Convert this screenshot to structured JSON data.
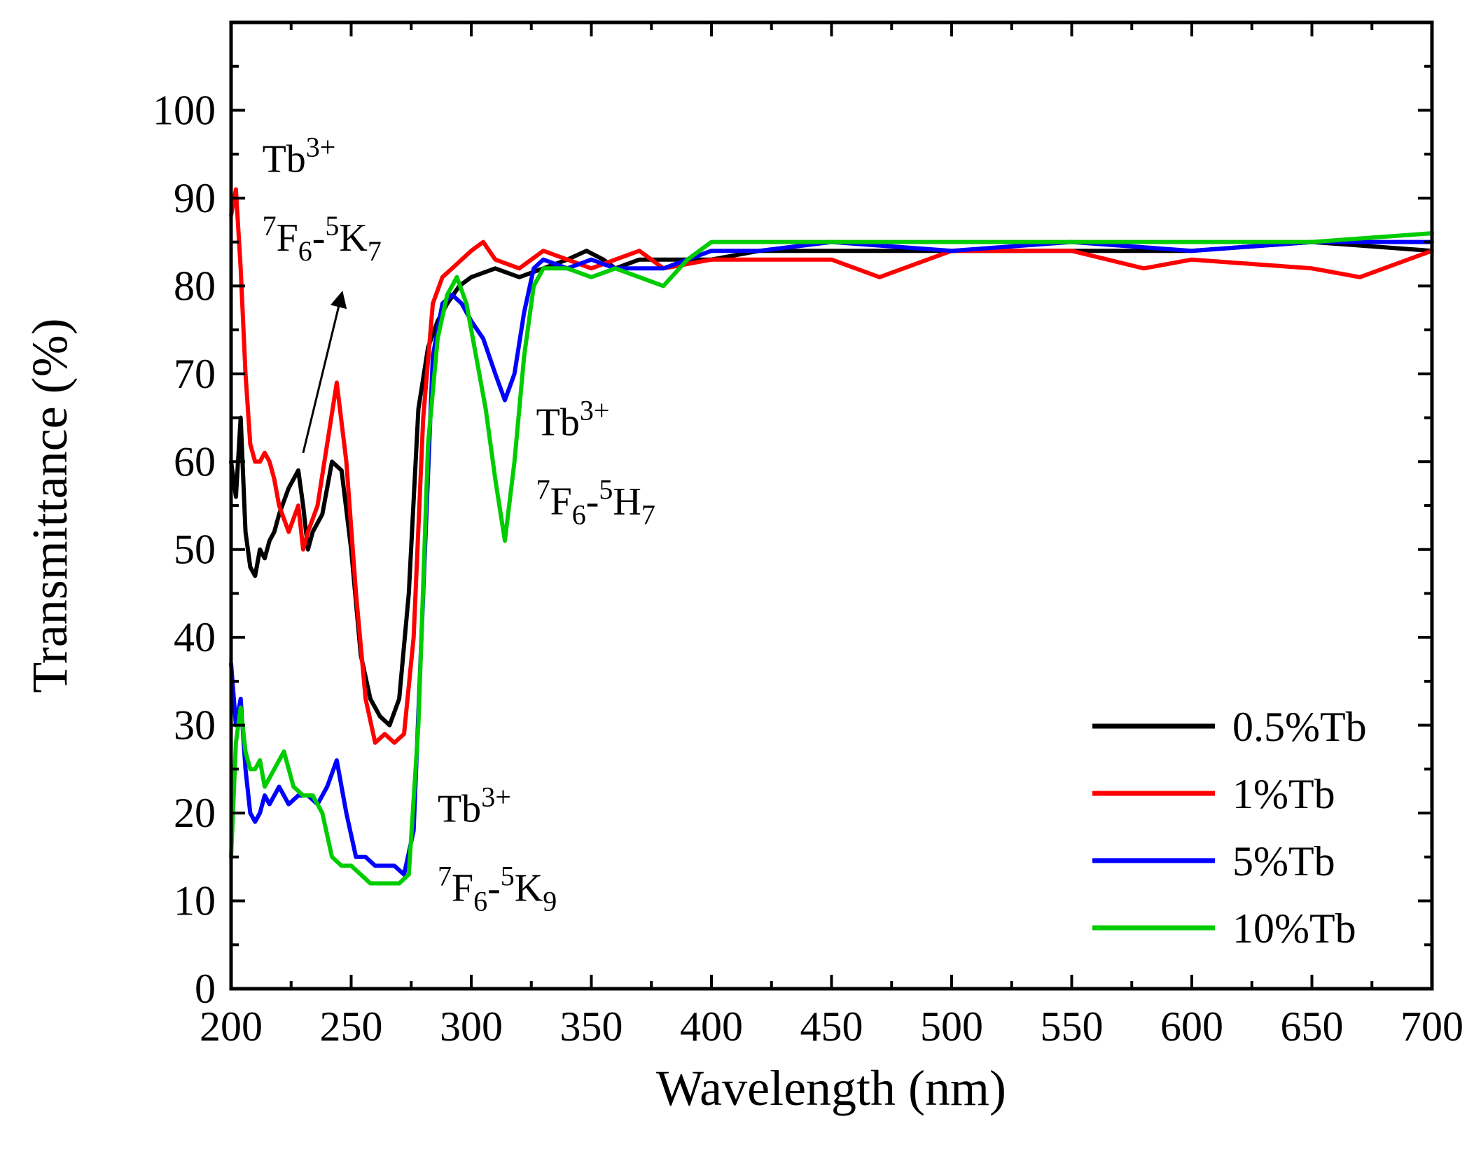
{
  "chart_data": {
    "type": "line",
    "title": "",
    "xlabel": "Wavelength (nm)",
    "ylabel": "Transmittance (%)",
    "xlim": [
      200,
      700
    ],
    "ylim": [
      0,
      110
    ],
    "xticks": [
      200,
      250,
      300,
      350,
      400,
      450,
      500,
      550,
      600,
      650,
      700
    ],
    "yticks": [
      0,
      10,
      20,
      30,
      40,
      50,
      60,
      70,
      80,
      90,
      100
    ],
    "grid": false,
    "legend_position": "bottom-right",
    "series": [
      {
        "name": "0.5%Tb",
        "color": "#000000",
        "x": [
          200,
          202,
          204,
          206,
          208,
          210,
          212,
          214,
          216,
          218,
          220,
          224,
          228,
          230,
          232,
          234,
          238,
          242,
          246,
          250,
          254,
          258,
          262,
          266,
          270,
          274,
          278,
          282,
          286,
          290,
          295,
          300,
          310,
          320,
          330,
          340,
          348,
          355,
          360,
          370,
          380,
          400,
          420,
          450,
          500,
          550,
          600,
          650,
          700
        ],
        "y": [
          60,
          56,
          65,
          52,
          48,
          47,
          50,
          49,
          51,
          52,
          54,
          57,
          59,
          55,
          50,
          52,
          54,
          60,
          59,
          50,
          38,
          33,
          31,
          30,
          33,
          45,
          66,
          73,
          76,
          78,
          80,
          81,
          82,
          81,
          82,
          83,
          84,
          83,
          82,
          83,
          83,
          83,
          84,
          84,
          84,
          84,
          84,
          85,
          84
        ]
      },
      {
        "name": "1%Tb",
        "color": "#ff0000",
        "x": [
          200,
          202,
          204,
          206,
          208,
          210,
          212,
          214,
          216,
          218,
          220,
          224,
          228,
          230,
          232,
          236,
          240,
          244,
          248,
          252,
          256,
          260,
          264,
          268,
          272,
          276,
          280,
          284,
          288,
          292,
          296,
          300,
          305,
          310,
          320,
          330,
          340,
          350,
          360,
          370,
          380,
          400,
          420,
          450,
          470,
          500,
          550,
          580,
          600,
          650,
          670,
          700
        ],
        "y": [
          88,
          91,
          82,
          70,
          62,
          60,
          60,
          61,
          60,
          58,
          55,
          52,
          55,
          50,
          52,
          55,
          62,
          69,
          60,
          45,
          33,
          28,
          29,
          28,
          29,
          40,
          65,
          78,
          81,
          82,
          83,
          84,
          85,
          83,
          82,
          84,
          83,
          82,
          83,
          84,
          82,
          83,
          83,
          83,
          81,
          84,
          84,
          82,
          83,
          82,
          81,
          84
        ]
      },
      {
        "name": "5%Tb",
        "color": "#0000ff",
        "x": [
          200,
          202,
          204,
          206,
          208,
          210,
          212,
          214,
          216,
          220,
          224,
          228,
          232,
          236,
          240,
          244,
          248,
          252,
          256,
          260,
          264,
          268,
          272,
          276,
          280,
          284,
          288,
          292,
          296,
          300,
          305,
          310,
          314,
          318,
          322,
          326,
          330,
          340,
          350,
          360,
          370,
          380,
          400,
          420,
          450,
          500,
          550,
          600,
          650,
          700
        ],
        "y": [
          37,
          30,
          33,
          25,
          20,
          19,
          20,
          22,
          21,
          23,
          21,
          22,
          22,
          21,
          23,
          26,
          20,
          15,
          15,
          14,
          14,
          14,
          13,
          18,
          45,
          72,
          78,
          79,
          78,
          76,
          74,
          70,
          67,
          70,
          77,
          82,
          83,
          82,
          83,
          82,
          82,
          82,
          84,
          84,
          85,
          84,
          85,
          84,
          85,
          85
        ]
      },
      {
        "name": "10%Tb",
        "color": "#00cc00",
        "x": [
          200,
          202,
          204,
          206,
          208,
          210,
          212,
          214,
          218,
          222,
          226,
          230,
          234,
          238,
          242,
          246,
          250,
          254,
          258,
          262,
          266,
          270,
          274,
          278,
          282,
          286,
          290,
          294,
          298,
          302,
          306,
          310,
          314,
          318,
          322,
          326,
          330,
          340,
          350,
          360,
          370,
          380,
          390,
          400,
          420,
          450,
          500,
          550,
          600,
          650,
          700
        ],
        "y": [
          15,
          28,
          32,
          27,
          25,
          25,
          26,
          23,
          25,
          27,
          23,
          22,
          22,
          20,
          15,
          14,
          14,
          13,
          12,
          12,
          12,
          12,
          13,
          30,
          62,
          74,
          79,
          81,
          78,
          72,
          66,
          58,
          51,
          60,
          72,
          80,
          82,
          82,
          81,
          82,
          81,
          80,
          83,
          85,
          85,
          85,
          85,
          85,
          85,
          85,
          86
        ]
      }
    ],
    "annotations": [
      {
        "text": "Tb",
        "sup": "3+",
        "wavelength": 213,
        "transmittance": 93
      },
      {
        "pre_sup": "7",
        "text1": "F",
        "sub1": "6",
        "dash": "-",
        "mid_sup": "5",
        "text2": "K",
        "sub2": "7",
        "wavelength": 213,
        "transmittance": 84
      },
      {
        "text": "Tb",
        "sup": "3+",
        "wavelength": 327,
        "transmittance": 63
      },
      {
        "pre_sup": "7",
        "text1": "F",
        "sub1": "6",
        "dash": "-",
        "mid_sup": "5",
        "text2": "H",
        "sub2": "7",
        "wavelength": 327,
        "transmittance": 54
      },
      {
        "text": "Tb",
        "sup": "3+",
        "wavelength": 286,
        "transmittance": 19
      },
      {
        "pre_sup": "7",
        "text1": "F",
        "sub1": "6",
        "dash": "-",
        "mid_sup": "5",
        "text2": "K",
        "sub2": "9",
        "wavelength": 286,
        "transmittance": 10
      }
    ],
    "arrow": {
      "from": [
        230,
        61
      ],
      "to": [
        246,
        79
      ]
    }
  }
}
